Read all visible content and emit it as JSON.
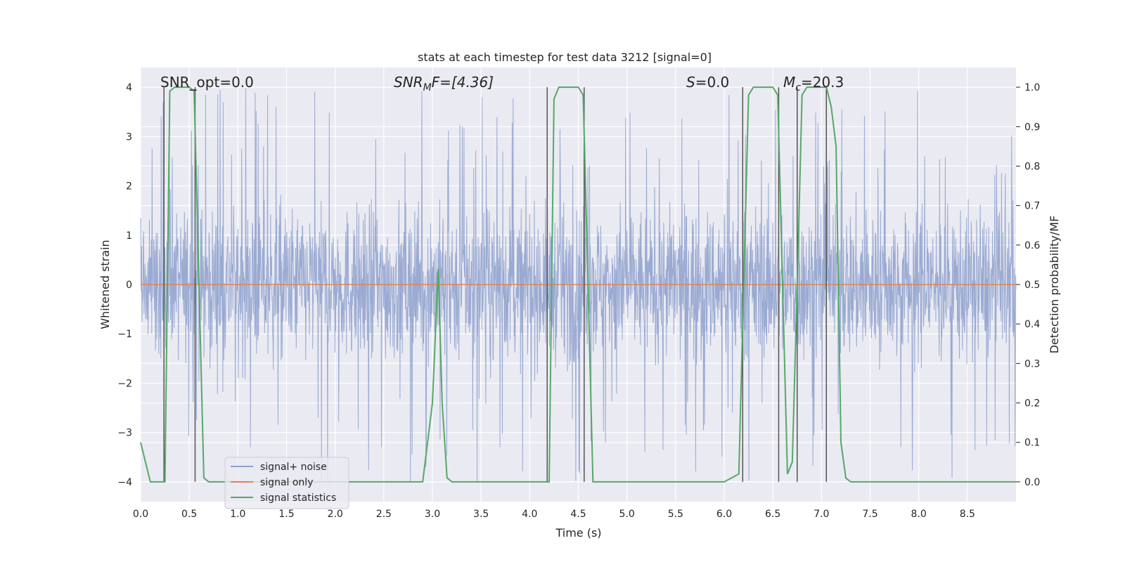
{
  "chart_data": {
    "type": "line",
    "title": "stats at each timestep for test data 3212 [signal=0]",
    "xlabel": "Time (s)",
    "ylabel": "Whitened strain",
    "ylabel_right": "Detection probability/MF",
    "xlim": [
      0,
      9
    ],
    "ylim": [
      -4.4,
      4.4
    ],
    "ylim_right": [
      -0.05,
      1.05
    ],
    "x_ticks": [
      "0.0",
      "0.5",
      "1.0",
      "1.5",
      "2.0",
      "2.5",
      "3.0",
      "3.5",
      "4.0",
      "4.5",
      "5.0",
      "5.5",
      "6.0",
      "6.5",
      "7.0",
      "7.5",
      "8.0",
      "8.5"
    ],
    "y_ticks": [
      "4",
      "3",
      "2",
      "1",
      "0",
      "−1",
      "−2",
      "−3",
      "−4"
    ],
    "y_ticks_right": [
      "1.0",
      "0.9",
      "0.8",
      "0.7",
      "0.6",
      "0.5",
      "0.4",
      "0.3",
      "0.2",
      "0.1",
      "0.0"
    ],
    "grid": true,
    "legend_position": "lower-left",
    "legend": [
      "signal+ noise",
      "signal only",
      "signal statistics"
    ],
    "colors": {
      "noise": "#8c9fcd",
      "signal_only": "#dd8452",
      "statistics": "#55a868",
      "markers": "#555555",
      "background": "#eaeaf2"
    },
    "annotations": {
      "snr_opt": "SNR_opt=0.0",
      "snr_mf_main": "SNR",
      "snr_mf_sub": "M",
      "snr_mf_rest": "F=[4.36]",
      "s_main": "S",
      "s_rest": "=0.0",
      "mc_main": "M",
      "mc_sub": "c",
      "mc_rest": "=20.3"
    },
    "series": [
      {
        "name": "signal+ noise",
        "axis": "left",
        "description_values": "dense noise around 0, bulk roughly within -2.5 to 2.5, occasional spikes up to ~4",
        "bulk_amplitude": 2.3,
        "spike_max": 4.0
      },
      {
        "name": "signal only",
        "axis": "left",
        "x": [
          0,
          9
        ],
        "y": [
          0,
          0
        ]
      },
      {
        "name": "signal statistics",
        "axis": "right",
        "x": [
          0.0,
          0.05,
          0.1,
          0.15,
          0.2,
          0.25,
          0.3,
          0.35,
          0.4,
          0.45,
          0.5,
          0.55,
          0.6,
          0.65,
          0.7,
          0.8,
          1.0,
          1.5,
          2.0,
          2.5,
          2.9,
          3.0,
          3.06,
          3.1,
          3.15,
          3.2,
          3.5,
          4.0,
          4.2,
          4.25,
          4.3,
          4.35,
          4.5,
          4.55,
          4.6,
          4.65,
          4.7,
          5.0,
          5.5,
          6.0,
          6.15,
          6.2,
          6.25,
          6.3,
          6.35,
          6.5,
          6.55,
          6.6,
          6.65,
          6.7,
          6.75,
          6.8,
          6.85,
          6.9,
          6.95,
          7.05,
          7.1,
          7.15,
          7.2,
          7.25,
          7.3,
          7.5,
          8.0,
          8.5,
          9.0
        ],
        "y": [
          0.1,
          0.05,
          0.0,
          0.0,
          0.0,
          0.0,
          0.99,
          1.0,
          1.0,
          1.0,
          1.0,
          0.99,
          0.5,
          0.01,
          0.0,
          0.0,
          0.0,
          0.0,
          0.0,
          0.0,
          0.0,
          0.2,
          0.54,
          0.2,
          0.01,
          0.0,
          0.0,
          0.0,
          0.0,
          0.97,
          1.0,
          1.0,
          1.0,
          0.98,
          0.5,
          0.0,
          0.0,
          0.0,
          0.0,
          0.0,
          0.02,
          0.5,
          0.98,
          1.0,
          1.0,
          1.0,
          0.98,
          0.5,
          0.02,
          0.05,
          0.5,
          0.98,
          1.0,
          1.0,
          1.0,
          1.0,
          0.95,
          0.85,
          0.1,
          0.01,
          0.0,
          0.0,
          0.0,
          0.0,
          0.0
        ]
      }
    ],
    "event_markers_x": [
      0.24,
      0.56,
      4.18,
      4.56,
      6.19,
      6.56,
      6.75,
      7.05
    ]
  }
}
